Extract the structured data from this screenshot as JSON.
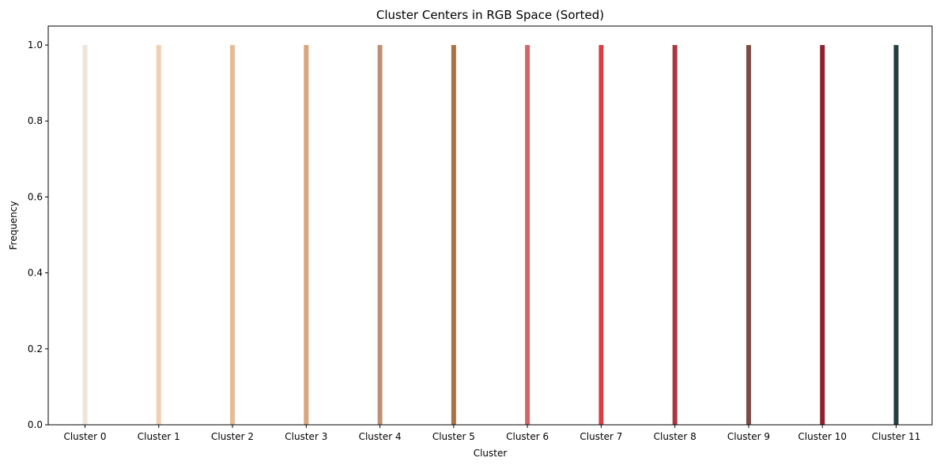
{
  "chart_data": {
    "type": "bar",
    "title": "Cluster Centers in RGB Space (Sorted)",
    "xlabel": "Cluster",
    "ylabel": "Frequency",
    "ylim": [
      0,
      1.05
    ],
    "yticks": [
      "0.0",
      "0.2",
      "0.4",
      "0.6",
      "0.8",
      "1.0"
    ],
    "categories": [
      "Cluster 0",
      "Cluster 1",
      "Cluster 2",
      "Cluster 3",
      "Cluster 4",
      "Cluster 5",
      "Cluster 6",
      "Cluster 7",
      "Cluster 8",
      "Cluster 9",
      "Cluster 10",
      "Cluster 11"
    ],
    "values": [
      1,
      1,
      1,
      1,
      1,
      1,
      1,
      1,
      1,
      1,
      1,
      1
    ],
    "colors": [
      "#efe3db",
      "#f2cfad",
      "#e6bc96",
      "#d8a67c",
      "#c09075",
      "#a87245",
      "#d3646a",
      "#da3d43",
      "#ab3540",
      "#7d4b45",
      "#8e212b",
      "#233f41"
    ],
    "grid": false,
    "legend": "none"
  }
}
